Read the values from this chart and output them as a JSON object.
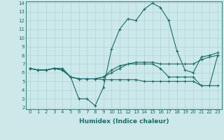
{
  "xlabel": "Humidex (Indice chaleur)",
  "ylabel": "",
  "background_color": "#cce8e8",
  "grid_color": "#b0d4d4",
  "line_color": "#1a6b6b",
  "xmin": 0,
  "xmax": 23,
  "ymin": 2,
  "ymax": 14,
  "xticks": [
    0,
    1,
    2,
    3,
    4,
    5,
    6,
    7,
    8,
    9,
    10,
    11,
    12,
    13,
    14,
    15,
    16,
    17,
    18,
    19,
    20,
    21,
    22,
    23
  ],
  "yticks": [
    2,
    3,
    4,
    5,
    6,
    7,
    8,
    9,
    10,
    11,
    12,
    13,
    14
  ],
  "series": [
    [
      6.5,
      6.3,
      6.3,
      6.5,
      6.3,
      5.5,
      3.0,
      3.0,
      2.2,
      4.3,
      8.7,
      11.0,
      12.2,
      12.0,
      13.3,
      14.0,
      13.5,
      12.0,
      8.5,
      6.3,
      6.0,
      7.8,
      8.0,
      8.3
    ],
    [
      6.5,
      6.3,
      6.3,
      6.5,
      6.3,
      5.5,
      5.3,
      5.3,
      5.3,
      5.2,
      5.2,
      5.2,
      5.2,
      5.2,
      5.0,
      5.0,
      5.0,
      5.0,
      5.0,
      5.0,
      5.0,
      4.5,
      4.5,
      4.5
    ],
    [
      6.5,
      6.3,
      6.3,
      6.5,
      6.3,
      5.5,
      5.3,
      5.3,
      5.3,
      5.5,
      6.0,
      6.5,
      7.0,
      7.2,
      7.2,
      7.2,
      7.0,
      7.0,
      7.0,
      7.0,
      7.0,
      7.5,
      7.8,
      8.0
    ],
    [
      6.5,
      6.3,
      6.3,
      6.5,
      6.5,
      5.5,
      5.3,
      5.3,
      5.3,
      5.5,
      6.3,
      6.8,
      7.0,
      7.0,
      7.0,
      7.0,
      6.5,
      5.5,
      5.5,
      5.5,
      5.5,
      4.5,
      4.5,
      8.0
    ]
  ]
}
